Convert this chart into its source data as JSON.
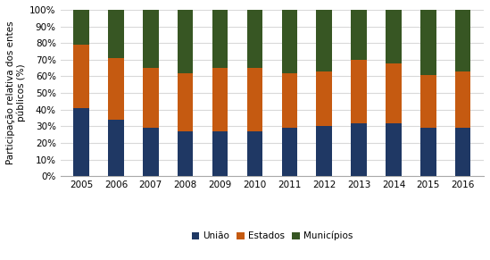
{
  "years": [
    "2005",
    "2006",
    "2007",
    "2008",
    "2009",
    "2010",
    "2011",
    "2012",
    "2013",
    "2014",
    "2015",
    "2016"
  ],
  "uniao": [
    41,
    34,
    29,
    27,
    27,
    27,
    29,
    30,
    32,
    32,
    29,
    29
  ],
  "estados": [
    38,
    37,
    36,
    35,
    38,
    38,
    33,
    33,
    38,
    36,
    32,
    34
  ],
  "municipios": [
    21,
    29,
    35,
    38,
    35,
    35,
    38,
    37,
    30,
    32,
    39,
    37
  ],
  "colors": {
    "uniao": "#1f3864",
    "estados": "#c55a11",
    "municipios": "#375623"
  },
  "ylabel": "Participação relativa dos entes\npúblicos (%)",
  "legend_labels": [
    "União",
    "Estados",
    "Municípios"
  ],
  "yticks": [
    0,
    10,
    20,
    30,
    40,
    50,
    60,
    70,
    80,
    90,
    100
  ],
  "ytick_labels": [
    "0%",
    "10%",
    "20%",
    "30%",
    "40%",
    "50%",
    "60%",
    "70%",
    "80%",
    "90%",
    "100%"
  ],
  "bar_width": 0.45,
  "figsize": [
    5.49,
    2.91
  ],
  "dpi": 100,
  "grid_color": "#d9d9d9",
  "bg_color": "#ffffff",
  "font_size": 7.5
}
